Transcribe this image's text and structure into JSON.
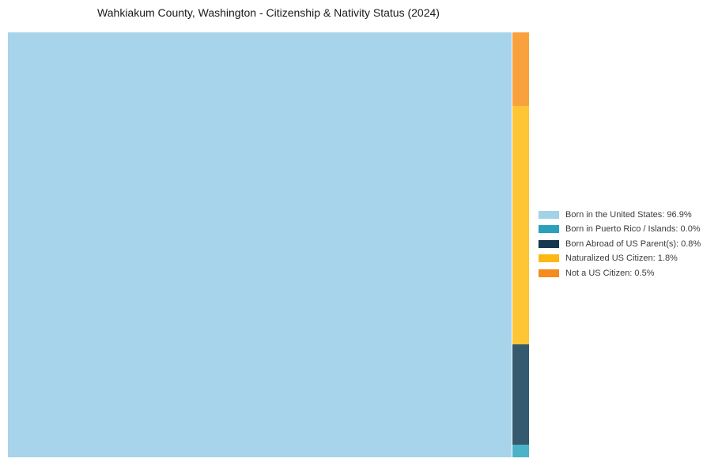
{
  "title": "Wahkiakum County, Washington - Citizenship & Nativity Status (2024)",
  "colors": {
    "background": "#ffffff",
    "title_text": "#1a1a1a",
    "legend_text": "#3b3b3b"
  },
  "chart_data": {
    "type": "treemap",
    "title": "Wahkiakum County, Washington - Citizenship & Nativity Status (2024)",
    "unit": "percent",
    "legend_position": "right-center",
    "series": [
      {
        "label": "Born in the United States",
        "value": 96.9,
        "legend_label": "Born in the United States: 96.9%",
        "tile_color": "#a7d4eb",
        "legend_color": "#a3d1e8"
      },
      {
        "label": "Born in Puerto Rico / Islands",
        "value": 0.0,
        "legend_label": "Born in Puerto Rico / Islands: 0.0%",
        "tile_color": "#4bb2c8",
        "legend_color": "#2aa0bd"
      },
      {
        "label": "Born Abroad of US Parent(s)",
        "value": 0.8,
        "legend_label": "Born Abroad of US Parent(s): 0.8%",
        "tile_color": "#35596e",
        "legend_color": "#16384f"
      },
      {
        "label": "Naturalized US Citizen",
        "value": 1.8,
        "legend_label": "Naturalized US Citizen: 1.8%",
        "tile_color": "#fec535",
        "legend_color": "#fdb813"
      },
      {
        "label": "Not a US Citizen",
        "value": 0.5,
        "legend_label": "Not a US Citizen: 0.5%",
        "tile_color": "#f9a13c",
        "legend_color": "#f68b1f"
      }
    ]
  }
}
